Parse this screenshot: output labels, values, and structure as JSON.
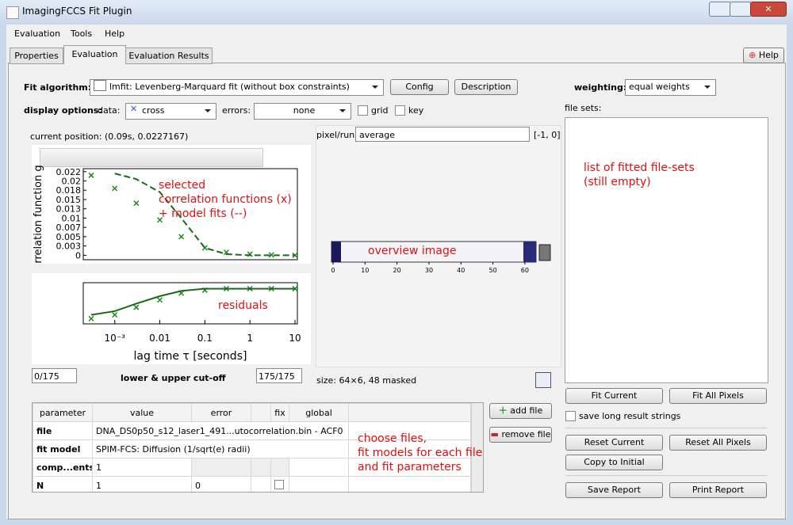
{
  "window": {
    "title": "ImagingFCCS Fit Plugin"
  },
  "menu": [
    "Evaluation",
    "Tools",
    "Help"
  ],
  "tabs": [
    "Properties",
    "Evaluation",
    "Evaluation Results"
  ],
  "help_button": "Help",
  "fit": {
    "label": "Fit algorithm:",
    "algorithm": "lmfit: Levenberg-Marquard fit (without box constraints)",
    "config": "Config",
    "description": "Description"
  },
  "weighting": {
    "label": "weighting:",
    "value": "equal weights"
  },
  "display": {
    "label": "display options:",
    "data_label": "data:",
    "data_value": "cross",
    "errors_label": "errors:",
    "errors_value": "none",
    "grid": "grid",
    "key": "key"
  },
  "file_sets_label": "file sets:",
  "file_sets_note": [
    "list of fitted file-sets",
    "(still empty)"
  ],
  "current_position": "current position: (0.09s, 0.0227167)",
  "chart_data": [
    {
      "type": "line",
      "y_label": "rrelation function g",
      "xscale": "log",
      "xlim": [
        0.0002,
        11.3
      ],
      "ylim": [
        -0.0012,
        0.0233
      ],
      "yticks": [
        {
          "value": 0.0225,
          "label": "0.022"
        },
        0.02,
        {
          "value": 0.0175,
          "label": "0.018"
        },
        0.015,
        {
          "value": 0.0125,
          "label": "0.013"
        },
        0.01,
        {
          "value": 0.0075,
          "label": "0.007"
        },
        0.005,
        {
          "value": 0.0025,
          "label": "0.003"
        },
        0
      ],
      "x": [
        0.0003,
        0.001,
        0.003,
        0.01,
        0.03,
        0.1,
        0.3,
        1,
        3,
        10
      ],
      "series": [
        {
          "color": "#1a8a1a",
          "marker": "x",
          "values": [
            0.0215,
            0.018,
            0.014,
            0.0095,
            0.005,
            0.002,
            0.0008,
            0.0003,
            0.0001,
            0
          ]
        },
        {
          "color": "#1a6a1a",
          "line": "dashed",
          "values": [
            null,
            0.022,
            0.0205,
            0.017,
            0.01,
            0.002,
            0.0003,
            0,
            0,
            0
          ]
        }
      ],
      "annotation": [
        "selected",
        "correlation functions (x)",
        "+ model fits (--)"
      ]
    },
    {
      "type": "line",
      "annotation": [
        "residuals"
      ],
      "x_label": "lag time τ [seconds]",
      "xscale": "log",
      "xlim": [
        0.0002,
        11.3
      ],
      "ylim": [
        -0.047,
        0.008
      ],
      "xticks": [
        {
          "value": 0.001,
          "label": "10⁻³"
        },
        0.01,
        0.1,
        1,
        10
      ],
      "x": [
        0.0003,
        0.001,
        0.003,
        0.01,
        0.03,
        0.1,
        0.3,
        1,
        3,
        10
      ],
      "series": [
        {
          "color": "#1a8a1a",
          "marker": "x",
          "values": [
            -0.04,
            -0.035,
            -0.025,
            -0.015,
            -0.006,
            -0.002,
            0,
            0,
            0,
            0
          ]
        },
        {
          "color": "#1a6a1a",
          "line": "solid",
          "values": [
            -0.035,
            -0.03,
            -0.02,
            -0.01,
            -0.003,
            0,
            0,
            0,
            0,
            0
          ]
        }
      ]
    },
    {
      "type": "image",
      "annotation": [
        "overview image"
      ],
      "xlim": [
        -0.5,
        63.5
      ],
      "xticks": [
        0,
        10,
        20,
        30,
        40,
        50,
        60
      ]
    }
  ],
  "pixel": {
    "label": "pixel/run:",
    "value": "average",
    "range": "[-1, 0]"
  },
  "size_text": "size: 64×6, 48 masked",
  "cutoff": {
    "lower": "0/175",
    "label": "lower & upper cut-off",
    "upper": "175/175"
  },
  "table": {
    "headers": [
      "parameter",
      "value",
      "error",
      "fix",
      "global"
    ],
    "rows": [
      {
        "parameter": "file",
        "value": "DNA_DS0p50_s12_laser1_491...utocorrelation.bin - ACF0"
      },
      {
        "parameter": "fit model",
        "value": "SPIM-FCS: Diffusion (1/sqrt(e) radii)"
      },
      {
        "parameter": "comp...ents",
        "value": "1"
      },
      {
        "parameter": "N",
        "value": "1",
        "error": "0"
      }
    ]
  },
  "table_note": [
    "choose files,",
    "fit models for each file",
    "and fit parameters"
  ],
  "buttons": {
    "add_file": "add file",
    "remove_file": "remove file",
    "fit_current": "Fit Current",
    "fit_all": "Fit All Pixels",
    "save_long": "save long result strings",
    "reset_current": "Reset Current",
    "reset_all": "Reset All Pixels",
    "copy_initial": "Copy to Initial",
    "save_report": "Save Report",
    "print_report": "Print Report"
  }
}
